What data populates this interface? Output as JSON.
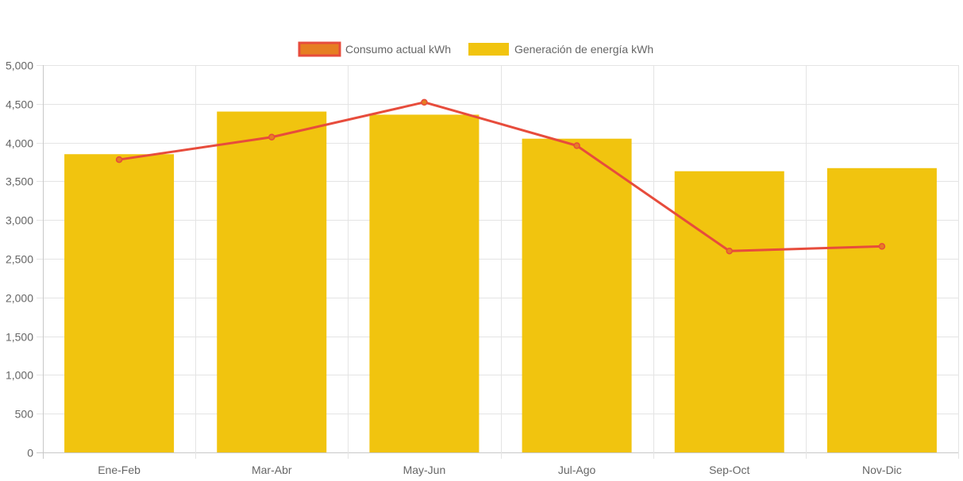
{
  "chart_data": {
    "type": "bar",
    "categories": [
      "Ene-Feb",
      "Mar-Abr",
      "May-Jun",
      "Jul-Ago",
      "Sep-Oct",
      "Nov-Dic"
    ],
    "series": [
      {
        "name": "Consumo actual kWh",
        "type": "line",
        "values": [
          3780,
          4070,
          4520,
          3960,
          2600,
          2660
        ],
        "color": "#e74c3c",
        "point_color": "#e67e22"
      },
      {
        "name": "Generación de energía kWh",
        "type": "bar",
        "values": [
          3850,
          4400,
          4360,
          4050,
          3630,
          3670
        ],
        "color": "#f1c40f"
      }
    ],
    "ylim": [
      0,
      5000
    ],
    "yticks": [
      0,
      500,
      1000,
      1500,
      2000,
      2500,
      3000,
      3500,
      4000,
      4500,
      5000
    ],
    "ytick_labels": [
      "0",
      "500",
      "1,000",
      "1,500",
      "2,000",
      "2,500",
      "3,000",
      "3,500",
      "4,000",
      "4,500",
      "5,000"
    ],
    "grid": true,
    "legend_position": "top-center",
    "title": "",
    "xlabel": "",
    "ylabel": ""
  }
}
